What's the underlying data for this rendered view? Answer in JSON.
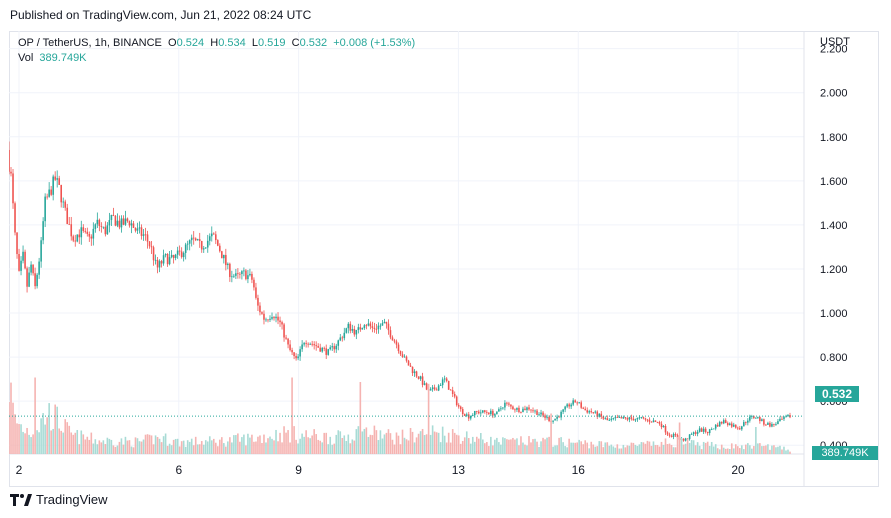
{
  "header": {
    "published": "Published on TradingView.com, Jun 21, 2022 08:24 UTC"
  },
  "legend": {
    "symbol": "OP / TetherUS, 1h, BINANCE",
    "o_label": "O",
    "o_value": "0.524",
    "h_label": "H",
    "h_value": "0.534",
    "l_label": "L",
    "l_value": "0.519",
    "c_label": "C",
    "c_value": "0.532",
    "change": "+0.008 (+1.53%)",
    "vol_label": "Vol",
    "vol_value": "389.749K"
  },
  "axis": {
    "currency": "USDT",
    "price_tag": "0.532",
    "vol_tag": "389.749K"
  },
  "brand": {
    "logo_icon": "tradingview-logo-icon",
    "name": "TradingView"
  },
  "colors": {
    "up": "#26a69a",
    "down": "#ef5350",
    "up_vol": "#a8dbd5",
    "down_vol": "#f5b3b1",
    "grid": "#f0f3fa"
  },
  "chart_data": {
    "type": "candlestick",
    "ylim": [
      0.36,
      2.28
    ],
    "y_ticks": [
      "2.200",
      "2.000",
      "1.800",
      "1.600",
      "1.400",
      "1.200",
      "1.000",
      "0.800",
      "0.600",
      "0.400"
    ],
    "x_ticks": [
      "2",
      "6",
      "9",
      "13",
      "16",
      "20"
    ],
    "x_tick_days": [
      2,
      6,
      9,
      13,
      16,
      20
    ],
    "start_day": 1.75,
    "end_day": 21.35,
    "last_close": 0.532,
    "close_path": [
      [
        1.75,
        1.73
      ],
      [
        1.85,
        1.62
      ],
      [
        1.95,
        1.35
      ],
      [
        2.05,
        1.17
      ],
      [
        2.15,
        1.26
      ],
      [
        2.25,
        1.12
      ],
      [
        2.35,
        1.22
      ],
      [
        2.45,
        1.11
      ],
      [
        2.6,
        1.3
      ],
      [
        2.7,
        1.5
      ],
      [
        2.85,
        1.56
      ],
      [
        2.95,
        1.61
      ],
      [
        3.05,
        1.57
      ],
      [
        3.2,
        1.46
      ],
      [
        3.4,
        1.34
      ],
      [
        3.6,
        1.37
      ],
      [
        3.8,
        1.33
      ],
      [
        4.0,
        1.41
      ],
      [
        4.2,
        1.37
      ],
      [
        4.4,
        1.43
      ],
      [
        4.6,
        1.4
      ],
      [
        4.8,
        1.42
      ],
      [
        5.0,
        1.37
      ],
      [
        5.2,
        1.35
      ],
      [
        5.35,
        1.3
      ],
      [
        5.5,
        1.2
      ],
      [
        5.7,
        1.25
      ],
      [
        5.9,
        1.24
      ],
      [
        6.2,
        1.29
      ],
      [
        6.4,
        1.33
      ],
      [
        6.6,
        1.3
      ],
      [
        6.9,
        1.35
      ],
      [
        7.1,
        1.28
      ],
      [
        7.3,
        1.19
      ],
      [
        7.5,
        1.16
      ],
      [
        7.7,
        1.18
      ],
      [
        7.9,
        1.15
      ],
      [
        8.0,
        1.04
      ],
      [
        8.2,
        0.97
      ],
      [
        8.4,
        1.0
      ],
      [
        8.6,
        0.95
      ],
      [
        8.8,
        0.84
      ],
      [
        9.0,
        0.78
      ],
      [
        9.2,
        0.88
      ],
      [
        9.4,
        0.86
      ],
      [
        9.6,
        0.84
      ],
      [
        9.8,
        0.82
      ],
      [
        10.0,
        0.86
      ],
      [
        10.3,
        0.94
      ],
      [
        10.5,
        0.91
      ],
      [
        10.7,
        0.96
      ],
      [
        10.9,
        0.93
      ],
      [
        11.2,
        0.95
      ],
      [
        11.5,
        0.86
      ],
      [
        11.7,
        0.79
      ],
      [
        11.9,
        0.74
      ],
      [
        12.1,
        0.7
      ],
      [
        12.3,
        0.64
      ],
      [
        12.5,
        0.66
      ],
      [
        12.7,
        0.7
      ],
      [
        12.9,
        0.63
      ],
      [
        13.1,
        0.56
      ],
      [
        13.3,
        0.53
      ],
      [
        13.5,
        0.55
      ],
      [
        13.8,
        0.55
      ],
      [
        14.0,
        0.54
      ],
      [
        14.2,
        0.59
      ],
      [
        14.4,
        0.57
      ],
      [
        14.6,
        0.56
      ],
      [
        14.8,
        0.57
      ],
      [
        15.0,
        0.55
      ],
      [
        15.2,
        0.53
      ],
      [
        15.4,
        0.51
      ],
      [
        15.6,
        0.54
      ],
      [
        15.8,
        0.58
      ],
      [
        16.0,
        0.6
      ],
      [
        16.2,
        0.56
      ],
      [
        16.4,
        0.55
      ],
      [
        16.6,
        0.53
      ],
      [
        16.8,
        0.51
      ],
      [
        17.0,
        0.52
      ],
      [
        17.3,
        0.52
      ],
      [
        17.6,
        0.52
      ],
      [
        17.9,
        0.51
      ],
      [
        18.1,
        0.5
      ],
      [
        18.3,
        0.45
      ],
      [
        18.5,
        0.44
      ],
      [
        18.7,
        0.42
      ],
      [
        18.9,
        0.45
      ],
      [
        19.1,
        0.47
      ],
      [
        19.3,
        0.46
      ],
      [
        19.5,
        0.49
      ],
      [
        19.7,
        0.51
      ],
      [
        19.9,
        0.49
      ],
      [
        20.1,
        0.48
      ],
      [
        20.3,
        0.52
      ],
      [
        20.5,
        0.53
      ],
      [
        20.7,
        0.5
      ],
      [
        20.9,
        0.49
      ],
      [
        21.1,
        0.51
      ],
      [
        21.35,
        0.532
      ]
    ],
    "volume_path": [
      [
        1.75,
        0.95
      ],
      [
        1.9,
        0.45
      ],
      [
        2.1,
        0.35
      ],
      [
        2.4,
        0.3
      ],
      [
        2.7,
        0.55
      ],
      [
        3.0,
        0.45
      ],
      [
        3.3,
        0.25
      ],
      [
        4.0,
        0.18
      ],
      [
        5.0,
        0.16
      ],
      [
        5.5,
        0.22
      ],
      [
        6.0,
        0.16
      ],
      [
        7.0,
        0.17
      ],
      [
        8.0,
        0.22
      ],
      [
        8.7,
        0.28
      ],
      [
        9.0,
        0.25
      ],
      [
        10.0,
        0.22
      ],
      [
        10.6,
        0.3
      ],
      [
        11.5,
        0.22
      ],
      [
        12.3,
        0.3
      ],
      [
        13.0,
        0.25
      ],
      [
        14.0,
        0.16
      ],
      [
        15.0,
        0.17
      ],
      [
        16.0,
        0.15
      ],
      [
        17.0,
        0.11
      ],
      [
        18.0,
        0.13
      ],
      [
        18.5,
        0.17
      ],
      [
        19.0,
        0.12
      ],
      [
        20.0,
        0.1
      ],
      [
        20.7,
        0.11
      ],
      [
        21.35,
        0.05
      ]
    ],
    "volume_spikes": [
      [
        2.4,
        0.85
      ],
      [
        8.85,
        0.85
      ],
      [
        10.55,
        0.8
      ],
      [
        12.25,
        0.78
      ],
      [
        15.3,
        0.45
      ],
      [
        18.55,
        0.35
      ],
      [
        20.45,
        0.3
      ]
    ]
  }
}
